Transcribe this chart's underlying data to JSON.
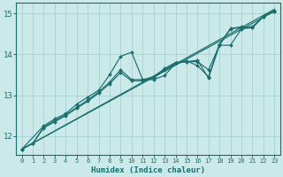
{
  "background_color": "#cce9e9",
  "grid_color": "#aad4d4",
  "line_color": "#1a6e6e",
  "xlabel": "Humidex (Indice chaleur)",
  "ylim": [
    11.55,
    15.25
  ],
  "xlim": [
    -0.5,
    23.5
  ],
  "yticks": [
    12,
    13,
    14,
    15
  ],
  "xticks": [
    0,
    1,
    2,
    3,
    4,
    5,
    6,
    7,
    8,
    9,
    10,
    11,
    12,
    13,
    14,
    15,
    16,
    17,
    18,
    19,
    20,
    21,
    22,
    23
  ],
  "line_straight1": {
    "x": [
      0,
      23
    ],
    "y": [
      11.68,
      15.05
    ]
  },
  "line_straight2": {
    "x": [
      0,
      23
    ],
    "y": [
      11.68,
      15.1
    ]
  },
  "line_jagged": {
    "x": [
      0,
      2,
      3,
      4,
      5,
      6,
      7,
      8,
      9,
      10,
      11,
      12,
      13,
      14,
      15,
      16,
      17,
      18,
      19,
      20,
      21,
      22,
      23
    ],
    "y": [
      11.68,
      12.25,
      12.42,
      12.55,
      12.78,
      12.95,
      13.12,
      13.5,
      13.95,
      14.05,
      13.38,
      13.38,
      13.48,
      13.78,
      13.82,
      13.82,
      13.62,
      14.22,
      14.22,
      14.62,
      14.65,
      14.92,
      15.05
    ]
  },
  "line_smooth": {
    "x": [
      0,
      1,
      2,
      3,
      4,
      5,
      6,
      7,
      8,
      9,
      10,
      11,
      12,
      13,
      14,
      15,
      16,
      17,
      18,
      19,
      20,
      21,
      22,
      23
    ],
    "y": [
      11.68,
      11.82,
      12.2,
      12.35,
      12.5,
      12.68,
      12.85,
      13.05,
      13.28,
      13.55,
      13.35,
      13.35,
      13.42,
      13.62,
      13.78,
      13.82,
      13.85,
      13.42,
      14.22,
      14.62,
      14.65,
      14.65,
      14.92,
      15.05
    ]
  },
  "line_mid": {
    "x": [
      0,
      1,
      2,
      3,
      4,
      5,
      6,
      7,
      8,
      9,
      10,
      11,
      12,
      13,
      14,
      15,
      16,
      17,
      18,
      19,
      20,
      21,
      22,
      23
    ],
    "y": [
      11.68,
      11.82,
      12.22,
      12.38,
      12.52,
      12.7,
      12.88,
      13.08,
      13.32,
      13.62,
      13.38,
      13.38,
      13.45,
      13.65,
      13.8,
      13.84,
      13.72,
      13.45,
      14.25,
      14.63,
      14.67,
      14.67,
      14.93,
      15.07
    ]
  }
}
